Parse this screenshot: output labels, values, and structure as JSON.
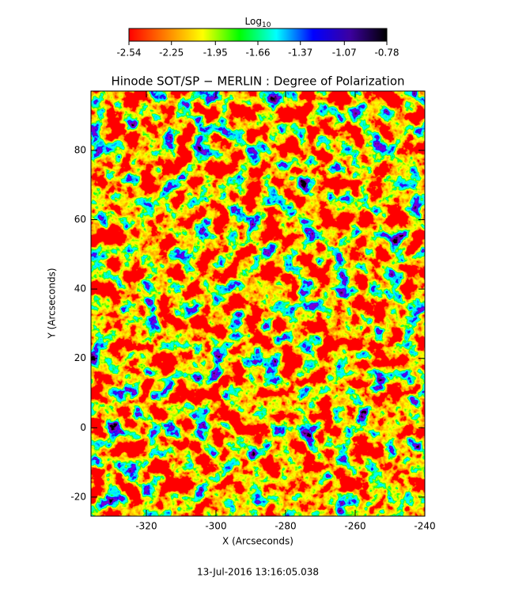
{
  "chart_data": {
    "type": "heatmap",
    "title": "Hinode SOT/SP − MERLIN : Degree of Polarization",
    "x_label": "X (Arcseconds)",
    "y_label": "Y (Arcseconds)",
    "xlim": [
      -335.9,
      -240
    ],
    "xticks": [
      -320,
      -300,
      -280,
      -260,
      -240
    ],
    "ylim": [
      -25.5,
      97.1
    ],
    "yticks": [
      -20,
      0,
      20,
      40,
      60,
      80
    ],
    "colorbar": {
      "label": "Log",
      "label_subscript": "10",
      "lim": [
        -2.54,
        -0.78
      ],
      "ticks": [
        -2.54,
        -2.25,
        -1.95,
        -1.66,
        -1.37,
        -1.07,
        -0.78
      ],
      "colormap": [
        "#ff0000",
        "#ff8000",
        "#ffff00",
        "#00ff00",
        "#00ffff",
        "#0000ff",
        "#3c00a0",
        "#000000"
      ]
    },
    "footer": "13-Jul-2016 13:16:05.038"
  }
}
